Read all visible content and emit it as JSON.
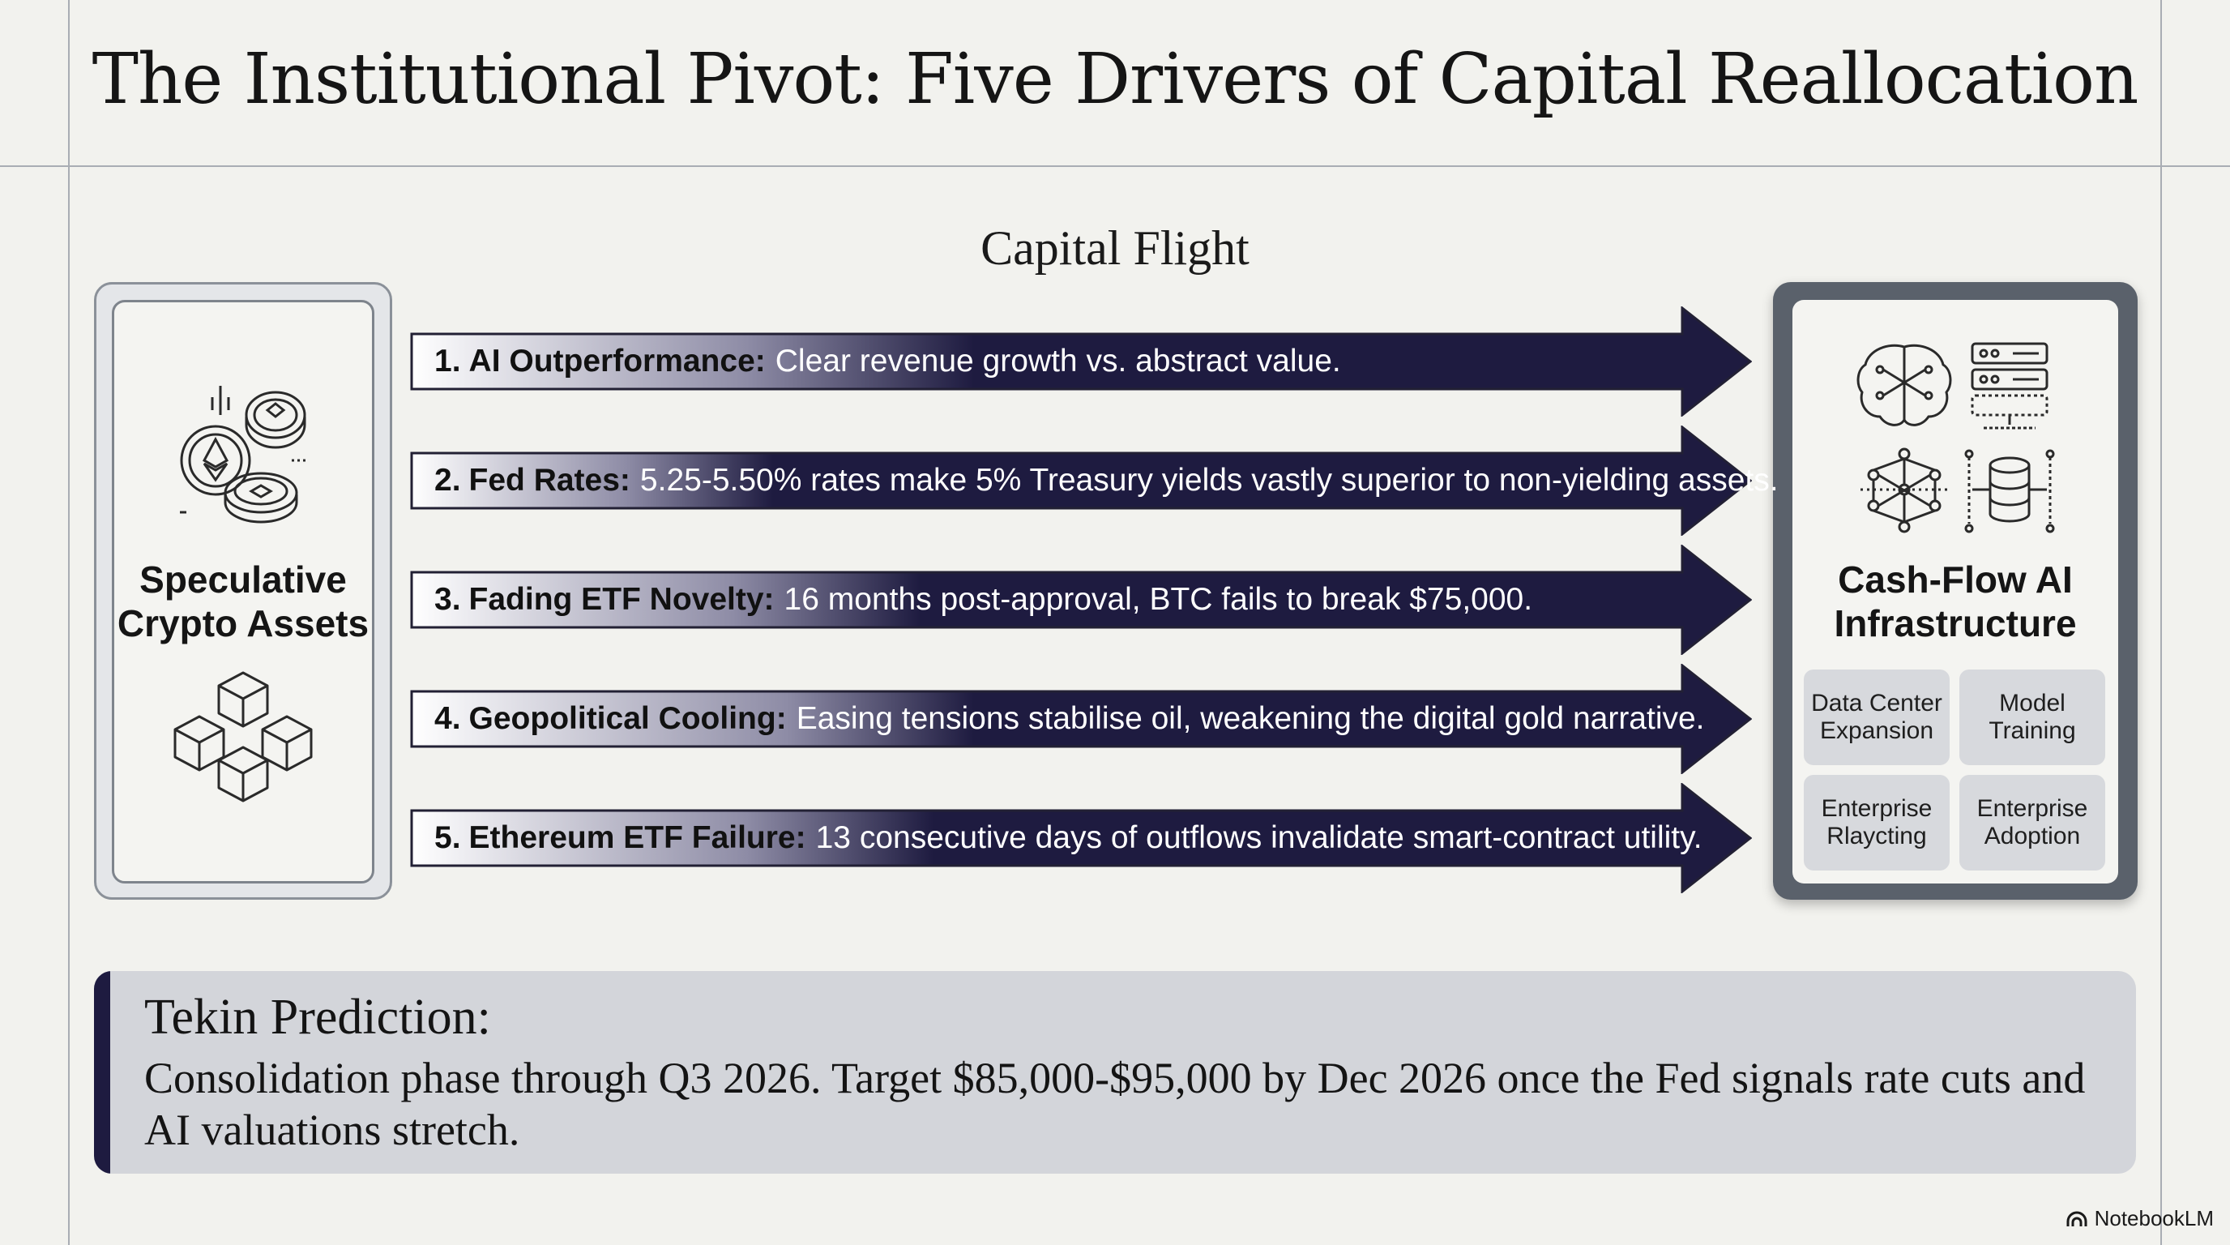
{
  "title": "The Institutional Pivot: Five Drivers of Capital Reallocation",
  "flow_label": "Capital Flight",
  "left_panel": {
    "title_line1": "Speculative",
    "title_line2": "Crypto Assets",
    "icons": [
      "crypto-coins-icon",
      "blockchain-cubes-icon"
    ]
  },
  "right_panel": {
    "title_line1": "Cash-Flow AI",
    "title_line2": "Infrastructure",
    "icons": [
      "ai-brain-icon",
      "server-rack-icon",
      "neural-network-icon",
      "database-icon"
    ],
    "tiles": [
      {
        "line1": "Data Center",
        "line2": "Expansion"
      },
      {
        "line1": "Model",
        "line2": "Training"
      },
      {
        "line1": "Enterprise",
        "line2": "Rlaycting"
      },
      {
        "line1": "Enterprise",
        "line2": "Adoption"
      }
    ]
  },
  "drivers": [
    {
      "number": "1.",
      "heading": "AI Outperformance:",
      "description": "Clear revenue growth vs. abstract value."
    },
    {
      "number": "2.",
      "heading": "Fed Rates:",
      "description": "5.25-5.50% rates make 5% Treasury yields vastly superior to non-yielding assets."
    },
    {
      "number": "3.",
      "heading": "Fading ETF Novelty:",
      "description": "16 months post-approval, BTC fails to break $75,000."
    },
    {
      "number": "4.",
      "heading": "Geopolitical Cooling:",
      "description": "Easing tensions stabilise oil, weakening the digital gold narrative."
    },
    {
      "number": "5.",
      "heading": "Ethereum ETF Failure:",
      "description": "13 consecutive days of outflows invalidate smart-contract utility."
    }
  ],
  "prediction": {
    "title": "Tekin Prediction:",
    "text": "Consolidation phase through Q3 2026. Target $85,000-$95,000 by Dec 2026 once the Fed signals rate cuts and AI valuations stretch."
  },
  "watermark": "NotebookLM",
  "colors": {
    "arrow_dark": "#1e1b40",
    "background": "#f2f2ee",
    "panel_dark": "#5a616b",
    "tile": "#d7d9dd",
    "prediction_bg": "#d3d5da"
  }
}
